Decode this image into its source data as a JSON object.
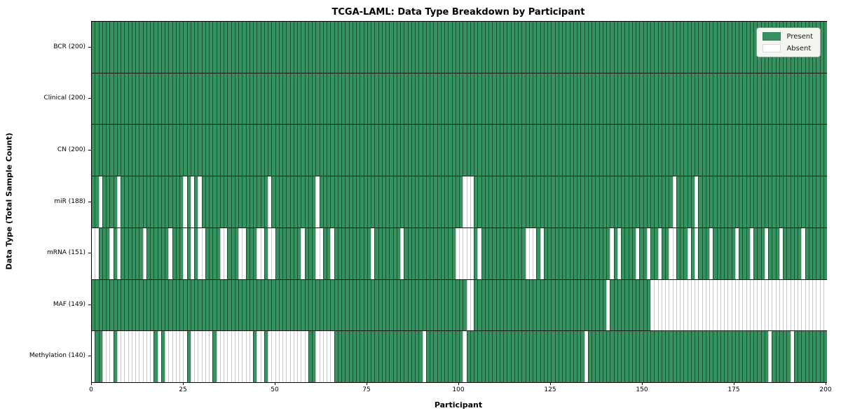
{
  "title": "TCGA-LAML: Data Type Breakdown by Participant",
  "axes": {
    "x_label": "Participant",
    "y_label": "Data Type (Total Sample Count)"
  },
  "legend": {
    "items": [
      {
        "label": "Present",
        "swatch": "present"
      },
      {
        "label": "Absent",
        "swatch": "absent"
      }
    ]
  },
  "colors": {
    "present": "#369360",
    "absent": "#ffffff",
    "edge_present": "rgba(0,0,0,0.45)",
    "edge_absent": "#c8c8c8",
    "row_divider": "#151515",
    "plot_border": "#000000",
    "legend_bg": "#f3f5f1",
    "legend_border": "#9a9a9a"
  },
  "chart_data": {
    "type": "heatmap",
    "title": "TCGA-LAML: Data Type Breakdown by Participant",
    "xlabel": "Participant",
    "ylabel": "Data Type (Total Sample Count)",
    "x_range": [
      0,
      200
    ],
    "x_ticks": [
      0,
      25,
      50,
      75,
      100,
      125,
      150,
      175,
      200
    ],
    "n_participants": 200,
    "legend_entries": [
      "Present",
      "Absent"
    ],
    "grid": false,
    "rows": [
      {
        "name": "BCR",
        "label": "BCR (200)",
        "present_count": 200,
        "absent_participants": []
      },
      {
        "name": "Clinical",
        "label": "Clinical (200)",
        "present_count": 200,
        "absent_participants": []
      },
      {
        "name": "CN",
        "label": "CN (200)",
        "present_count": 200,
        "absent_participants": []
      },
      {
        "name": "miR",
        "label": "miR (188)",
        "present_count": 188,
        "absent_participants": [
          2,
          7,
          25,
          27,
          29,
          48,
          61,
          101,
          102,
          103,
          158,
          164
        ]
      },
      {
        "name": "mRNA",
        "label": "mRNA (151)",
        "present_count": 151,
        "absent_participants": [
          0,
          1,
          5,
          7,
          14,
          21,
          25,
          27,
          29,
          30,
          35,
          36,
          40,
          41,
          45,
          46,
          48,
          49,
          57,
          61,
          62,
          65,
          76,
          84,
          99,
          100,
          101,
          102,
          103,
          105,
          118,
          119,
          120,
          122,
          141,
          143,
          148,
          151,
          154,
          157,
          158,
          162,
          164,
          168,
          175,
          179,
          183,
          187,
          193
        ]
      },
      {
        "name": "MAF",
        "label": "MAF (149)",
        "present_count": 149,
        "absent_participants": [
          102,
          103,
          140,
          152,
          153,
          154,
          155,
          156,
          157,
          158,
          159,
          160,
          161,
          162,
          163,
          164,
          165,
          166,
          167,
          168,
          169,
          170,
          171,
          172,
          173,
          174,
          175,
          176,
          177,
          178,
          179,
          180,
          181,
          182,
          183,
          184,
          185,
          186,
          187,
          188,
          189,
          190,
          191,
          192,
          193,
          194,
          195,
          196,
          197,
          198,
          199
        ]
      },
      {
        "name": "Methylation",
        "label": "Methylation (140)",
        "present_count": 140,
        "absent_participants": [
          0,
          3,
          4,
          5,
          7,
          8,
          9,
          10,
          11,
          12,
          13,
          14,
          15,
          16,
          18,
          20,
          21,
          22,
          23,
          24,
          25,
          27,
          28,
          29,
          30,
          31,
          32,
          34,
          35,
          36,
          37,
          38,
          39,
          40,
          41,
          42,
          43,
          45,
          46,
          48,
          49,
          50,
          51,
          52,
          53,
          54,
          55,
          56,
          57,
          58,
          61,
          62,
          63,
          64,
          65,
          90,
          101,
          134,
          184,
          190
        ]
      }
    ]
  }
}
